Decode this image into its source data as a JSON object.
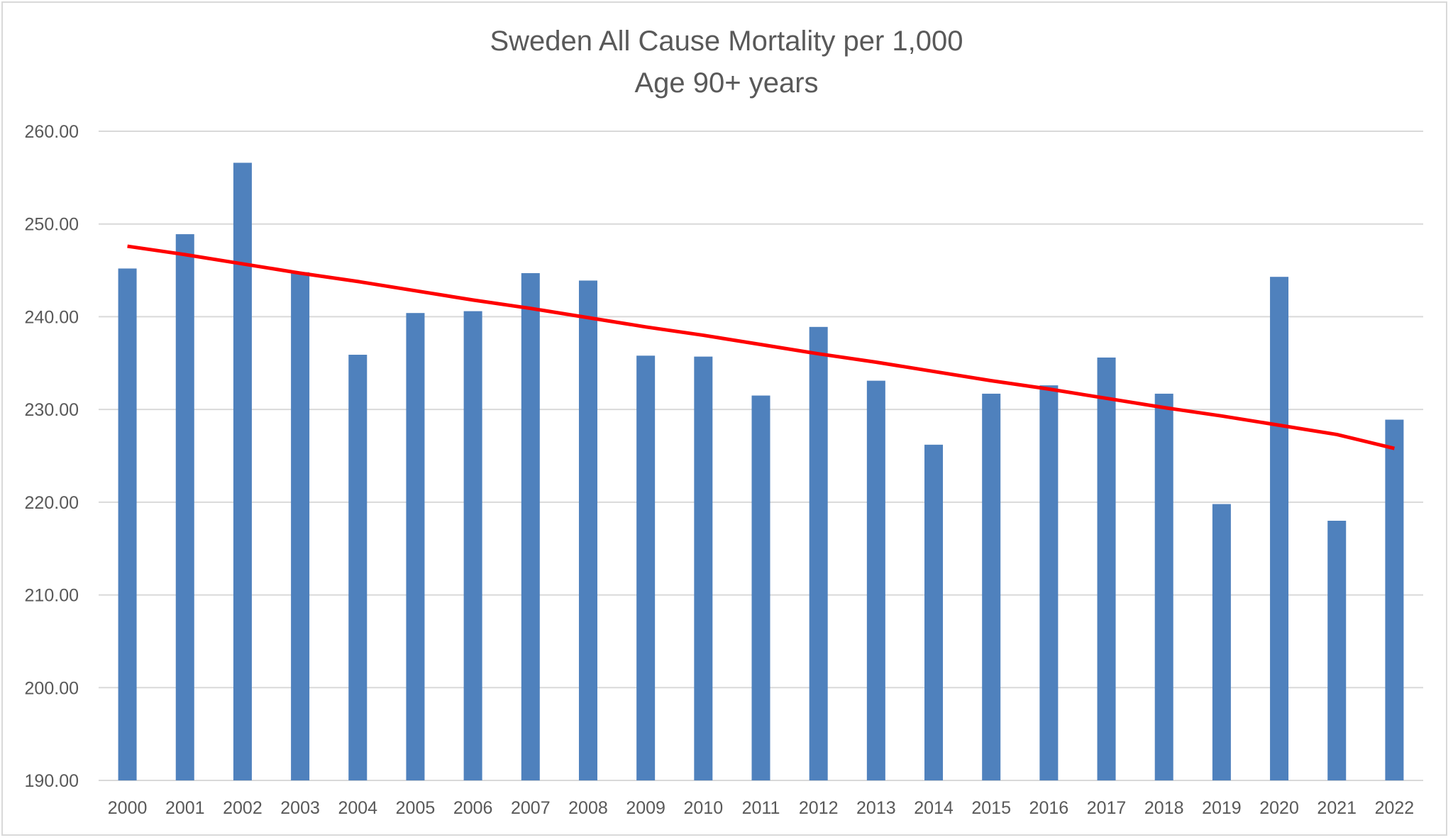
{
  "chart_data": {
    "type": "bar",
    "title": "Sweden All Cause Mortality per 1,000",
    "subtitle": "Age 90+ years",
    "xlabel": "",
    "ylabel": "",
    "ylim": [
      190,
      260
    ],
    "yticks": [
      "190.00",
      "200.00",
      "210.00",
      "220.00",
      "230.00",
      "240.00",
      "250.00",
      "260.00"
    ],
    "ytick_values": [
      190,
      200,
      210,
      220,
      230,
      240,
      250,
      260
    ],
    "categories": [
      "2000",
      "2001",
      "2002",
      "2003",
      "2004",
      "2005",
      "2006",
      "2007",
      "2008",
      "2009",
      "2010",
      "2011",
      "2012",
      "2013",
      "2014",
      "2015",
      "2016",
      "2017",
      "2018",
      "2019",
      "2020",
      "2021",
      "2022"
    ],
    "series": [
      {
        "type": "bar",
        "color": "#4f81bd",
        "values": [
          245.2,
          248.9,
          256.6,
          244.8,
          235.9,
          240.4,
          240.6,
          244.7,
          243.9,
          235.8,
          235.7,
          231.5,
          238.9,
          233.1,
          226.2,
          231.7,
          232.6,
          235.6,
          231.7,
          219.8,
          244.3,
          218.0,
          228.9
        ]
      },
      {
        "type": "trendline",
        "color": "#ff0000",
        "values": [
          247.6,
          246.7,
          245.7,
          244.7,
          243.8,
          242.8,
          241.8,
          240.9,
          239.9,
          238.9,
          238.0,
          237.0,
          236.0,
          235.1,
          234.1,
          233.1,
          232.2,
          231.2,
          230.2,
          229.3,
          228.3,
          227.3,
          225.8
        ]
      }
    ],
    "grid": true,
    "legend": "none",
    "colors": {
      "bar": "#4f81bd",
      "trendline": "#ff0000",
      "grid": "#d9d9d9",
      "text": "#595959"
    }
  }
}
